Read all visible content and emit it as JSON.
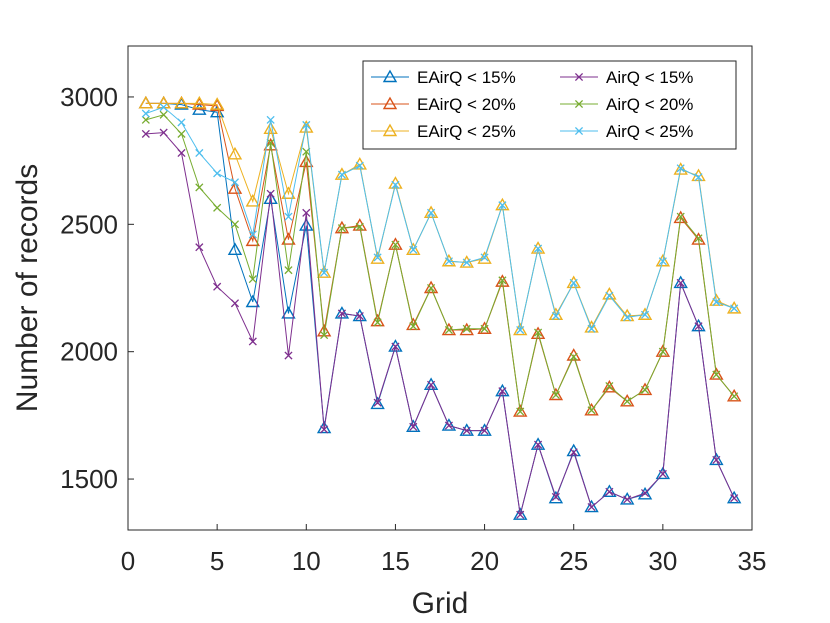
{
  "chart_data": {
    "type": "line",
    "xlabel": "Grid",
    "ylabel": "Number of records",
    "xlim": [
      0,
      35
    ],
    "ylim": [
      1300,
      3200
    ],
    "xticks": [
      0,
      5,
      10,
      15,
      20,
      25,
      30,
      35
    ],
    "yticks": [
      1500,
      2000,
      2500,
      3000
    ],
    "grid": false,
    "legend_placement": "top-right",
    "x": [
      1,
      2,
      3,
      4,
      5,
      6,
      7,
      8,
      9,
      10,
      11,
      12,
      13,
      14,
      15,
      16,
      17,
      18,
      19,
      20,
      21,
      22,
      23,
      24,
      25,
      26,
      27,
      28,
      29,
      30,
      31,
      32,
      33,
      34
    ],
    "series": [
      {
        "name": "EAirQ < 15%",
        "color": "#0072BD",
        "marker": "triangle",
        "values": [
          2975,
          2975,
          2970,
          2950,
          2940,
          2400,
          2195,
          2600,
          2150,
          2495,
          1700,
          2150,
          2140,
          1795,
          2020,
          1705,
          1870,
          1710,
          1690,
          1690,
          1845,
          1360,
          1635,
          1425,
          1610,
          1390,
          1450,
          1420,
          1440,
          1520,
          2270,
          2100,
          1575,
          1425
        ]
      },
      {
        "name": "EAirQ < 20%",
        "color": "#D95319",
        "marker": "triangle",
        "values": [
          2975,
          2975,
          2975,
          2970,
          2965,
          2640,
          2435,
          2810,
          2440,
          2745,
          2080,
          2485,
          2495,
          2120,
          2420,
          2105,
          2250,
          2085,
          2085,
          2090,
          2275,
          1765,
          2070,
          1830,
          1985,
          1770,
          1860,
          1805,
          1850,
          2000,
          2525,
          2440,
          1910,
          1825
        ]
      },
      {
        "name": "EAirQ < 25%",
        "color": "#EDB120",
        "marker": "triangle",
        "values": [
          2975,
          2975,
          2975,
          2975,
          2970,
          2775,
          2590,
          2875,
          2620,
          2880,
          2310,
          2695,
          2735,
          2365,
          2660,
          2400,
          2545,
          2355,
          2350,
          2365,
          2575,
          2085,
          2405,
          2145,
          2270,
          2095,
          2225,
          2140,
          2145,
          2355,
          2715,
          2690,
          2200,
          2170
        ]
      },
      {
        "name": "AirQ < 15%",
        "color": "#7E2F8E",
        "marker": "x",
        "values": [
          2855,
          2860,
          2780,
          2410,
          2255,
          2190,
          2040,
          2620,
          1985,
          2545,
          1695,
          2150,
          2140,
          1800,
          2020,
          1705,
          1870,
          1710,
          1690,
          1690,
          1845,
          1360,
          1635,
          1430,
          1605,
          1390,
          1450,
          1420,
          1445,
          1520,
          2270,
          2100,
          1575,
          1425
        ]
      },
      {
        "name": "AirQ < 20%",
        "color": "#77AC30",
        "marker": "x",
        "values": [
          2910,
          2930,
          2855,
          2645,
          2565,
          2500,
          2285,
          2820,
          2320,
          2785,
          2065,
          2485,
          2490,
          2115,
          2420,
          2100,
          2250,
          2085,
          2090,
          2090,
          2280,
          1765,
          2075,
          1830,
          1980,
          1770,
          1865,
          1805,
          1850,
          2000,
          2530,
          2445,
          1910,
          1825
        ]
      },
      {
        "name": "AirQ < 25%",
        "color": "#4DBEEE",
        "marker": "x",
        "values": [
          2935,
          2960,
          2900,
          2780,
          2700,
          2665,
          2460,
          2910,
          2530,
          2890,
          2310,
          2695,
          2730,
          2370,
          2655,
          2400,
          2545,
          2355,
          2350,
          2370,
          2575,
          2085,
          2405,
          2140,
          2270,
          2090,
          2220,
          2135,
          2145,
          2355,
          2720,
          2685,
          2195,
          2170
        ]
      }
    ]
  }
}
